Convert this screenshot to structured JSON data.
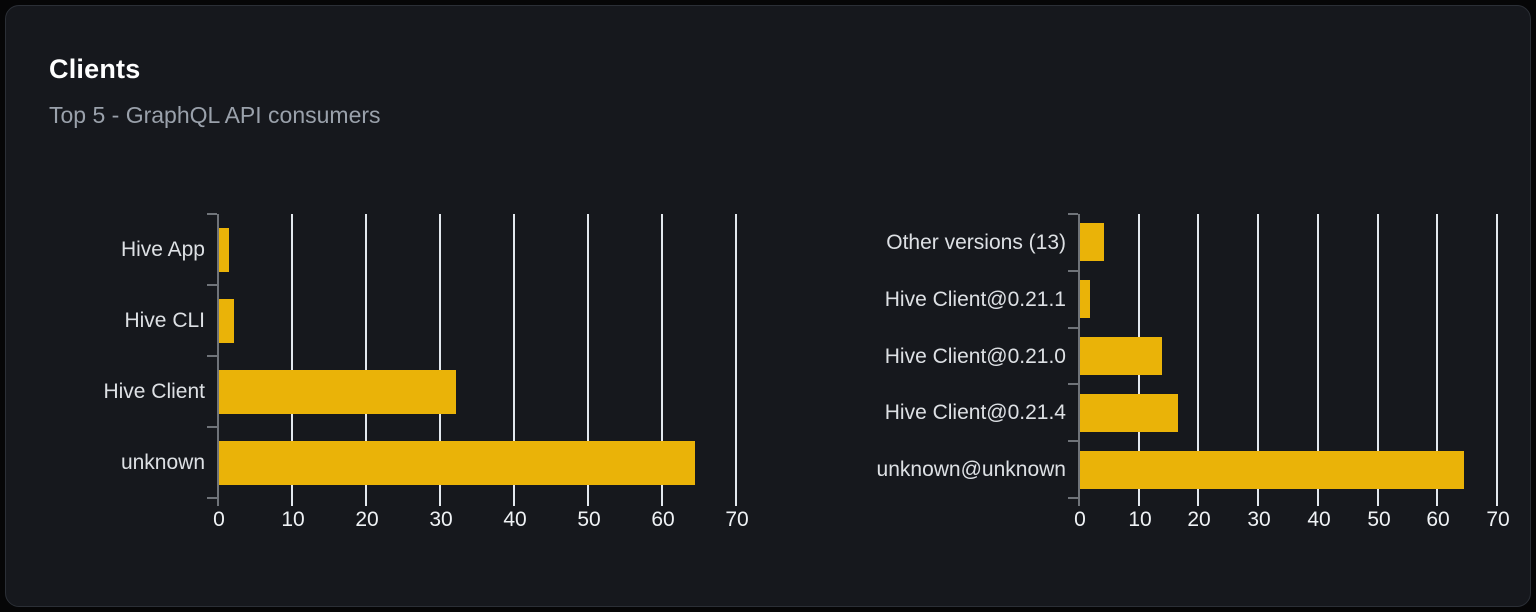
{
  "card": {
    "title": "Clients",
    "subtitle": "Top 5 - GraphQL API consumers"
  },
  "colors": {
    "page_bg": "#060607",
    "card_bg": "#16181d",
    "card_border": "#2b2f36",
    "title": "#ffffff",
    "subtitle": "#9aa1ab",
    "bar": "#eab308",
    "grid": "#e3e8ee",
    "axis": "#6f7379",
    "category_label": "#dde0e4",
    "tick_label": "#eff2f5"
  },
  "chart_data": [
    {
      "name": "clients-by-name-chart",
      "type": "bar",
      "orientation": "horizontal",
      "categories": [
        "Hive App",
        "Hive CLI",
        "Hive Client",
        "unknown"
      ],
      "values": [
        1.4,
        2,
        32,
        64.3
      ],
      "xticks": [
        0,
        10,
        20,
        30,
        40,
        50,
        60,
        70
      ],
      "xlim": [
        0,
        73
      ],
      "grid": true,
      "legend": "none"
    },
    {
      "name": "clients-by-version-chart",
      "type": "bar",
      "orientation": "horizontal",
      "categories": [
        "Other versions (13)",
        "Hive Client@0.21.1",
        "Hive Client@0.21.0",
        "Hive Client@0.21.4",
        "unknown@unknown"
      ],
      "values": [
        4,
        1.7,
        13.8,
        16.4,
        64.3
      ],
      "xticks": [
        0,
        10,
        20,
        30,
        40,
        50,
        60,
        70
      ],
      "xlim": [
        0,
        73
      ],
      "grid": true,
      "legend": "none"
    }
  ]
}
